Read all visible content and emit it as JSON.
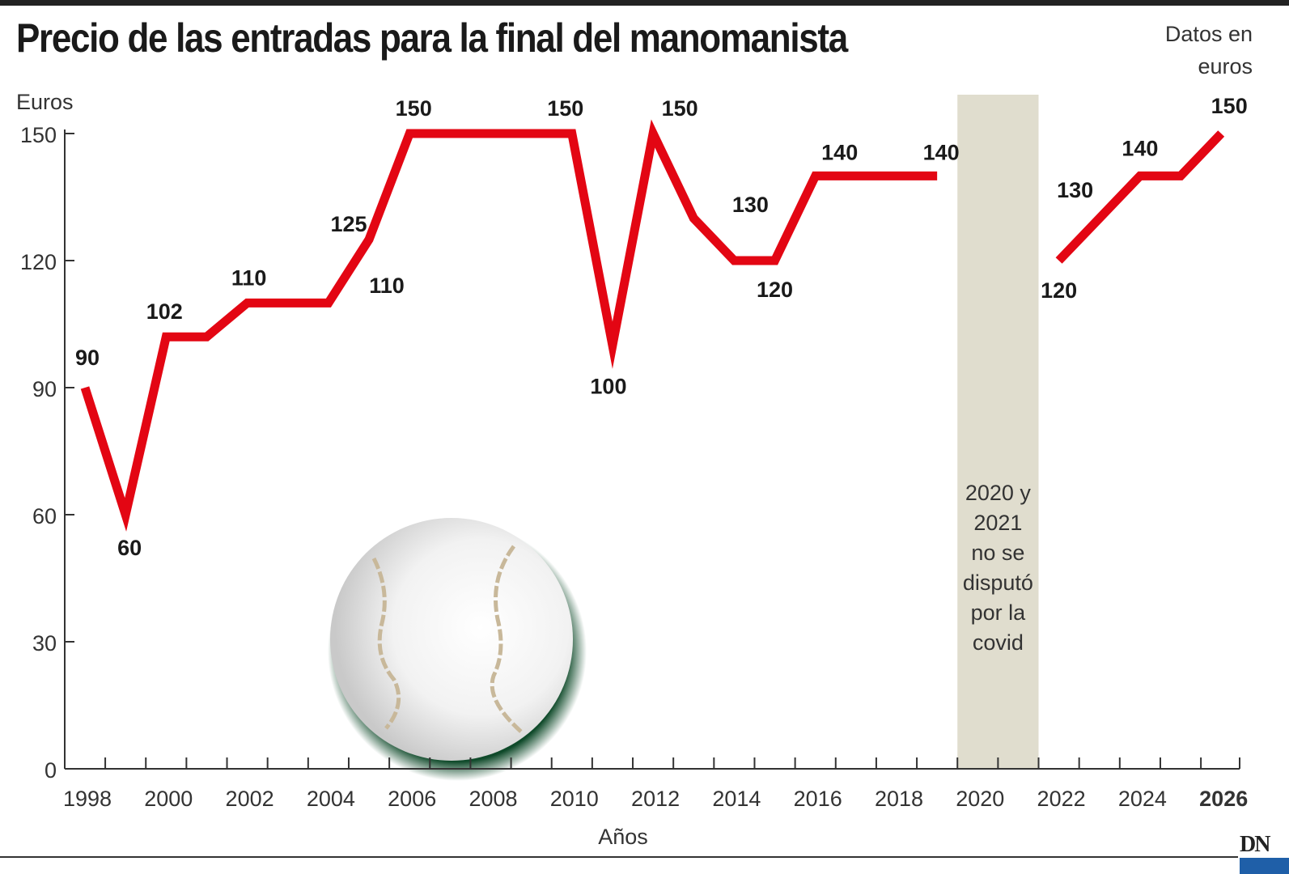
{
  "title": "Precio de las entradas para la final del manomanista",
  "note": "Datos en euros",
  "logo": "DN",
  "colors": {
    "line": "#e30613",
    "band": "#e0ddce",
    "axis": "#333333",
    "highlight": "#e30613"
  },
  "chart_data": {
    "type": "line",
    "title": "Precio de las entradas para la final del manomanista",
    "xlabel": "Años",
    "ylabel": "Euros",
    "ylim": [
      0,
      150
    ],
    "xlim": [
      1998,
      2026
    ],
    "yticks": [
      "0",
      "30",
      "60",
      "90",
      "120",
      "150"
    ],
    "xticks": [
      "1998",
      "2000",
      "2002",
      "2004",
      "2006",
      "2008",
      "2010",
      "2012",
      "2014",
      "2016",
      "2018",
      "2020",
      "2022",
      "2024",
      "2026"
    ],
    "grid": false,
    "x": [
      1998,
      1999,
      2000,
      2001,
      2002,
      2003,
      2004,
      2005,
      2006,
      2007,
      2008,
      2009,
      2010,
      2011,
      2012,
      2013,
      2014,
      2015,
      2016,
      2017,
      2018,
      2019,
      2020,
      2021,
      2022,
      2023,
      2024,
      2025,
      2026
    ],
    "values": [
      90,
      60,
      102,
      102,
      110,
      110,
      110,
      125,
      150,
      150,
      150,
      150,
      150,
      100,
      150,
      130,
      120,
      120,
      140,
      140,
      140,
      140,
      null,
      null,
      120,
      130,
      140,
      140,
      150
    ],
    "data_labels": [
      {
        "year": 1998,
        "text": "90"
      },
      {
        "year": 1999,
        "text": "60"
      },
      {
        "year": 2000,
        "text": "102"
      },
      {
        "year": 2002,
        "text": "110"
      },
      {
        "year": 2005,
        "text": "125"
      },
      {
        "year": 2005,
        "text": "110"
      },
      {
        "year": 2006,
        "text": "150"
      },
      {
        "year": 2010,
        "text": "150"
      },
      {
        "year": 2011,
        "text": "100"
      },
      {
        "year": 2012,
        "text": "150"
      },
      {
        "year": 2014,
        "text": "130"
      },
      {
        "year": 2015,
        "text": "120"
      },
      {
        "year": 2016,
        "text": "140"
      },
      {
        "year": 2019,
        "text": "140"
      },
      {
        "year": 2022,
        "text": "120"
      },
      {
        "year": 2022,
        "text": "130"
      },
      {
        "year": 2024,
        "text": "140"
      },
      {
        "year": 2026,
        "text": "150"
      }
    ],
    "annotation": {
      "years": [
        2020,
        2021
      ],
      "lines": [
        "2020 y",
        "2021",
        "no se",
        "disputó",
        "por la",
        "covid"
      ]
    }
  }
}
